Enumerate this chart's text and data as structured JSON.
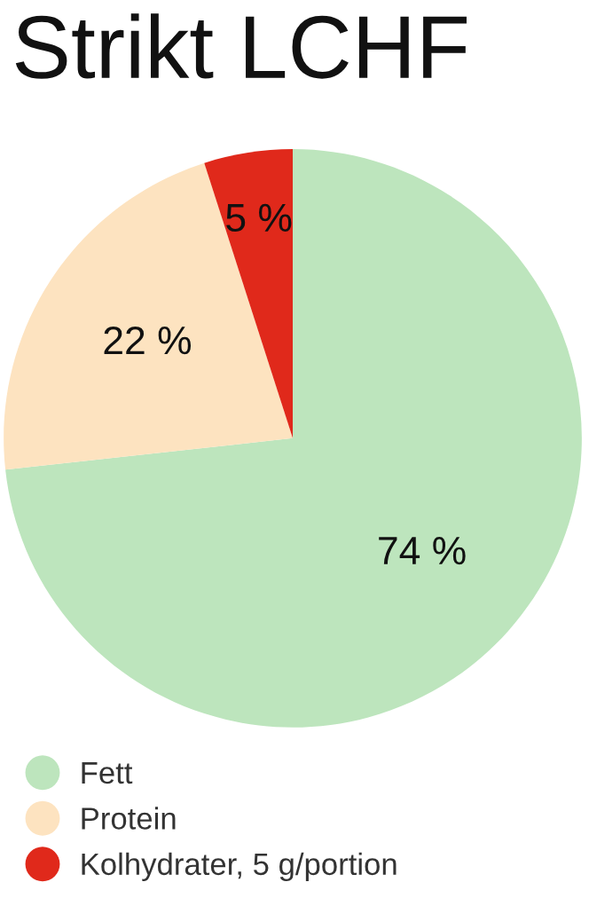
{
  "chart_data": {
    "type": "pie",
    "title": "Strikt LCHF",
    "categories": [
      "Fett",
      "Protein",
      "Kolhydrater, 5 g/portion"
    ],
    "values": [
      74,
      22,
      5
    ],
    "colors": [
      "#bde5bd",
      "#fde3c0",
      "#e0291b"
    ],
    "value_labels": [
      "74 %",
      "22 %",
      "5 %"
    ],
    "legend": "bottom left"
  }
}
